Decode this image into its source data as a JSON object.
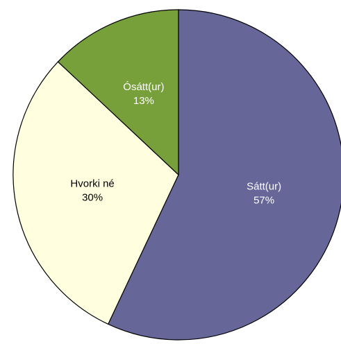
{
  "chart_data": {
    "type": "pie",
    "categories": [
      "Sátt(ur)",
      "Hvorki né",
      "Ósátt(ur)"
    ],
    "values": [
      57,
      30,
      13
    ],
    "value_labels": [
      "57%",
      "30%",
      "13%"
    ],
    "colors": [
      "#666699",
      "#ffffe0",
      "#77a03a"
    ],
    "label_colors": [
      "#ffffff",
      "#000000",
      "#ffffff"
    ]
  }
}
